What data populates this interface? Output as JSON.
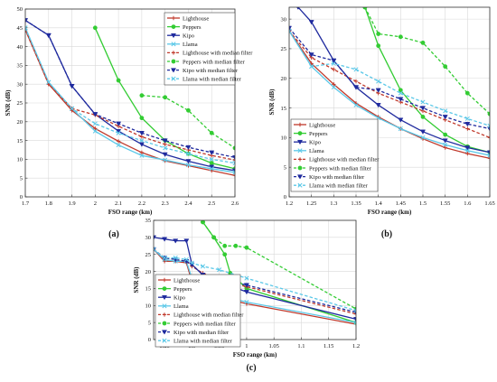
{
  "chart_data": [
    {
      "type": "line",
      "caption": "(a)",
      "xlabel": "FSO range (km)",
      "ylabel": "SNR (dB)",
      "xlim": [
        1.7,
        2.6
      ],
      "ylim": [
        0,
        50
      ],
      "xticks": [
        "1.7",
        "1.8",
        "1.9",
        "2",
        "2.1",
        "2.2",
        "2.3",
        "2.4",
        "2.5",
        "2.6"
      ],
      "yticks": [
        "0",
        "5",
        "10",
        "15",
        "20",
        "25",
        "30",
        "35",
        "40",
        "45",
        "50"
      ],
      "grid": true,
      "legend_position": "top-right",
      "series": [
        {
          "name": "Lighthouse",
          "color": "#c0392b",
          "dash": "solid",
          "marker": "plus",
          "x": [
            1.7,
            1.8,
            1.9,
            2.0,
            2.1,
            2.2,
            2.3,
            2.4,
            2.5,
            2.6
          ],
          "y": [
            44.5,
            30,
            23,
            18.2,
            14.8,
            11.8,
            9.6,
            8.3,
            7,
            5.7
          ]
        },
        {
          "name": "Peppers",
          "color": "#33cc33",
          "dash": "solid",
          "marker": "circle",
          "x": [
            2.0,
            2.1,
            2.2,
            2.3,
            2.4,
            2.5,
            2.6
          ],
          "y": [
            45,
            31,
            21,
            15,
            11.5,
            9,
            7.5
          ]
        },
        {
          "name": "Kipo",
          "color": "#1f2a9e",
          "dash": "solid",
          "marker": "triangle-down",
          "x": [
            1.7,
            1.8,
            1.9,
            2.0,
            2.1,
            2.2,
            2.3,
            2.4,
            2.5,
            2.6
          ],
          "y": [
            47,
            43,
            29.5,
            22,
            17.5,
            14,
            11.3,
            9.5,
            8,
            7
          ]
        },
        {
          "name": "Llama",
          "color": "#5bc8e8",
          "dash": "solid",
          "marker": "x",
          "x": [
            1.7,
            1.8,
            1.9,
            2.0,
            2.1,
            2.2,
            2.3,
            2.4,
            2.5,
            2.6
          ],
          "y": [
            45,
            30.5,
            23.5,
            17.5,
            13.8,
            11,
            9.8,
            8.5,
            7.5,
            6.5
          ]
        },
        {
          "name": "Lighthouse with median filter",
          "color": "#c0392b",
          "dash": "dashed",
          "marker": "plus",
          "x": [
            1.7,
            1.8,
            1.9,
            2.0,
            2.1,
            2.2,
            2.3,
            2.4,
            2.5,
            2.6
          ],
          "y": [
            44.5,
            30,
            23.5,
            21.8,
            18.8,
            16,
            14,
            12.5,
            11,
            9.8
          ]
        },
        {
          "name": "Peppers with median filter",
          "color": "#33cc33",
          "dash": "dashed",
          "marker": "circle",
          "x": [
            2.2,
            2.3,
            2.4,
            2.5,
            2.6
          ],
          "y": [
            27,
            26.5,
            23,
            17,
            13
          ]
        },
        {
          "name": "Kipo with median filter",
          "color": "#1f2a9e",
          "dash": "dashed",
          "marker": "triangle-down",
          "x": [
            1.7,
            1.8,
            1.9,
            2.0,
            2.1,
            2.2,
            2.3,
            2.4,
            2.5,
            2.6
          ],
          "y": [
            47,
            43,
            29.5,
            22,
            19.5,
            17,
            15,
            13.2,
            11.8,
            10.5
          ]
        },
        {
          "name": "Llama with median filter",
          "color": "#5bc8e8",
          "dash": "dashed",
          "marker": "x",
          "x": [
            1.7,
            1.8,
            1.9,
            2.0,
            2.1,
            2.2,
            2.3,
            2.4,
            2.5,
            2.6
          ],
          "y": [
            45,
            30.5,
            23.5,
            19.5,
            17,
            15,
            13,
            11.5,
            10,
            9
          ]
        }
      ]
    },
    {
      "type": "line",
      "caption": "(b)",
      "xlabel": "FSO range (km)",
      "ylabel": "SNR (dB)",
      "xlim": [
        1.2,
        1.65
      ],
      "ylim": [
        0,
        32
      ],
      "xticks": [
        "1.2",
        "1.25",
        "1.3",
        "1.35",
        "1.4",
        "1.45",
        "1.5",
        "1.55",
        "1.6",
        "1.65"
      ],
      "yticks": [
        "0",
        "5",
        "10",
        "15",
        "20",
        "25",
        "30"
      ],
      "grid": true,
      "legend_position": "bottom-left",
      "series": [
        {
          "name": "Lighthouse",
          "color": "#c0392b",
          "dash": "solid",
          "marker": "plus",
          "x": [
            1.2,
            1.25,
            1.3,
            1.35,
            1.4,
            1.45,
            1.5,
            1.55,
            1.6,
            1.65
          ],
          "y": [
            28,
            22.5,
            19,
            15.8,
            13.5,
            11.5,
            9.8,
            8.3,
            7.3,
            6.5
          ]
        },
        {
          "name": "Peppers",
          "color": "#33cc33",
          "dash": "solid",
          "marker": "circle",
          "x": [
            1.37,
            1.4,
            1.45,
            1.5,
            1.55,
            1.6,
            1.65
          ],
          "y": [
            32,
            25.5,
            18,
            13.5,
            10.5,
            8.5,
            7.5
          ]
        },
        {
          "name": "Kipo",
          "color": "#1f2a9e",
          "dash": "solid",
          "marker": "triangle-down",
          "x": [
            1.22,
            1.25,
            1.3,
            1.35,
            1.4,
            1.45,
            1.5,
            1.55,
            1.6,
            1.65
          ],
          "y": [
            32,
            29.5,
            23,
            18.5,
            15.5,
            13,
            11,
            9.5,
            8.3,
            7.5
          ]
        },
        {
          "name": "Llama",
          "color": "#5bc8e8",
          "dash": "solid",
          "marker": "x",
          "x": [
            1.2,
            1.25,
            1.3,
            1.35,
            1.4,
            1.45,
            1.5,
            1.55,
            1.6,
            1.65
          ],
          "y": [
            28,
            22,
            18.5,
            15.5,
            13.3,
            11.5,
            10,
            8.8,
            7.8,
            7
          ]
        },
        {
          "name": "Lighthouse with median filter",
          "color": "#c0392b",
          "dash": "dashed",
          "marker": "plus",
          "x": [
            1.2,
            1.25,
            1.3,
            1.35,
            1.4,
            1.45,
            1.5,
            1.55,
            1.6,
            1.65
          ],
          "y": [
            28,
            23.5,
            21.5,
            19.5,
            17.5,
            16,
            14.5,
            13,
            11.5,
            10
          ]
        },
        {
          "name": "Peppers with median filter",
          "color": "#33cc33",
          "dash": "dashed",
          "marker": "circle",
          "x": [
            1.37,
            1.4,
            1.45,
            1.5,
            1.55,
            1.6,
            1.65
          ],
          "y": [
            32,
            27.5,
            27,
            26,
            22,
            17.5,
            14
          ]
        },
        {
          "name": "Kipo with median filter",
          "color": "#1f2a9e",
          "dash": "dashed",
          "marker": "triangle-down",
          "x": [
            1.2,
            1.25,
            1.3,
            1.35,
            1.4,
            1.45,
            1.5,
            1.55,
            1.6,
            1.65
          ],
          "y": [
            28.5,
            24,
            23,
            18.5,
            18,
            16.5,
            15,
            13.5,
            12.3,
            11.5
          ]
        },
        {
          "name": "Llama with median filter",
          "color": "#5bc8e8",
          "dash": "dashed",
          "marker": "x",
          "x": [
            1.2,
            1.25,
            1.3,
            1.35,
            1.4,
            1.45,
            1.5,
            1.55,
            1.6,
            1.65
          ],
          "y": [
            28,
            22,
            22.5,
            21.5,
            19.5,
            17.5,
            16,
            14.5,
            13.2,
            12
          ]
        }
      ]
    },
    {
      "type": "line",
      "caption": "(c)",
      "xlabel": "FSO range (km)",
      "ylabel": "SNR (dB)",
      "xlim": [
        0.83,
        1.2
      ],
      "ylim": [
        0,
        35
      ],
      "xticks": [
        "0.85",
        "0.9",
        "0.95",
        "1",
        "1.05",
        "1.1",
        "1.15",
        "1.2"
      ],
      "yticks": [
        "0",
        "5",
        "10",
        "15",
        "20",
        "25",
        "30",
        "35"
      ],
      "grid": true,
      "legend_position": "bottom-left",
      "series": [
        {
          "name": "Lighthouse",
          "color": "#c0392b",
          "dash": "solid",
          "marker": "plus",
          "x": [
            0.83,
            0.85,
            0.87,
            0.89,
            0.9,
            0.92,
            0.95,
            1.0,
            1.2
          ],
          "y": [
            26.5,
            23,
            23,
            22.5,
            17,
            14.5,
            12.5,
            10.5,
            4.5
          ]
        },
        {
          "name": "Peppers",
          "color": "#33cc33",
          "dash": "solid",
          "marker": "circle",
          "x": [
            0.92,
            0.94,
            0.96,
            0.97,
            1.0,
            1.2
          ],
          "y": [
            34.5,
            30,
            25,
            19.5,
            15,
            5
          ]
        },
        {
          "name": "Kipo",
          "color": "#1f2a9e",
          "dash": "solid",
          "marker": "triangle-down",
          "x": [
            0.83,
            0.85,
            0.87,
            0.89,
            0.9,
            0.92,
            0.95,
            1.0,
            1.2
          ],
          "y": [
            30,
            29.5,
            29,
            29,
            22,
            19,
            17,
            14,
            6
          ]
        },
        {
          "name": "Llama",
          "color": "#5bc8e8",
          "dash": "solid",
          "marker": "x",
          "x": [
            0.83,
            0.85,
            0.87,
            0.89,
            0.9,
            0.92,
            0.95,
            1.0,
            1.2
          ],
          "y": [
            26.5,
            23.5,
            23,
            23,
            18,
            15.5,
            13,
            11,
            5
          ]
        },
        {
          "name": "Lighthouse with median filter",
          "color": "#c0392b",
          "dash": "dashed",
          "marker": "plus",
          "x": [
            0.83,
            0.85,
            0.87,
            0.89,
            0.9,
            0.92,
            0.95,
            1.0,
            1.2
          ],
          "y": [
            26.5,
            24,
            23.5,
            23,
            21.5,
            19.5,
            17.5,
            15.5,
            7.5
          ]
        },
        {
          "name": "Peppers with median filter",
          "color": "#33cc33",
          "dash": "dashed",
          "marker": "circle",
          "x": [
            0.92,
            0.94,
            0.96,
            0.98,
            1.0,
            1.2
          ],
          "y": [
            34.5,
            30,
            27.5,
            27.5,
            27,
            9
          ]
        },
        {
          "name": "Kipo with median filter",
          "color": "#1f2a9e",
          "dash": "dashed",
          "marker": "triangle-down",
          "x": [
            0.83,
            0.85,
            0.87,
            0.89,
            0.9,
            0.92,
            0.95,
            1.0,
            1.2
          ],
          "y": [
            26.5,
            24,
            23.5,
            23,
            22,
            19,
            18,
            16,
            8
          ]
        },
        {
          "name": "Llama with median filter",
          "color": "#5bc8e8",
          "dash": "dashed",
          "marker": "x",
          "x": [
            0.83,
            0.85,
            0.87,
            0.89,
            0.9,
            0.92,
            0.95,
            1.0,
            1.2
          ],
          "y": [
            26.5,
            24,
            24,
            23.5,
            22.5,
            21.5,
            20.5,
            18,
            8.5
          ]
        }
      ]
    }
  ]
}
